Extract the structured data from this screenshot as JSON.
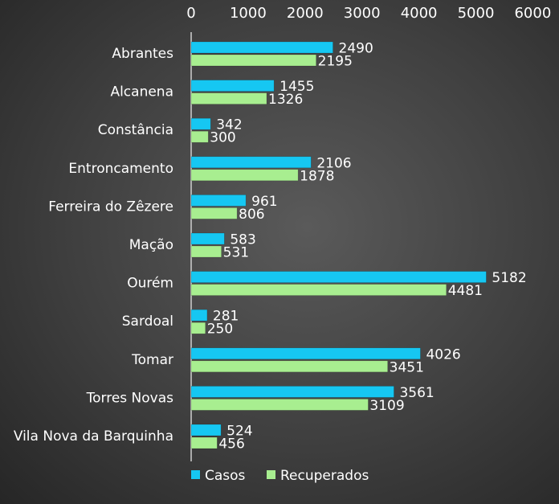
{
  "chart_data": {
    "type": "bar",
    "orientation": "horizontal",
    "categories": [
      "Abrantes",
      "Alcanena",
      "Constância",
      "Entroncamento",
      "Ferreira do Zêzere",
      "Mação",
      "Ourém",
      "Sardoal",
      "Tomar",
      "Torres Novas",
      "Vila Nova da Barquinha"
    ],
    "series": [
      {
        "name": "Casos",
        "color": "#16c7f2",
        "values": [
          2490,
          1455,
          342,
          2106,
          961,
          583,
          5182,
          281,
          4026,
          3561,
          524
        ]
      },
      {
        "name": "Recuperados",
        "color": "#a8ee90",
        "values": [
          2195,
          1326,
          300,
          1878,
          806,
          531,
          4481,
          250,
          3451,
          3109,
          456
        ]
      }
    ],
    "xlim": [
      0,
      6000
    ],
    "xticks": [
      0,
      1000,
      2000,
      3000,
      4000,
      5000,
      6000
    ],
    "xaxis_position": "top",
    "grid": false,
    "legend": "bottom-left",
    "data_labels": true
  }
}
